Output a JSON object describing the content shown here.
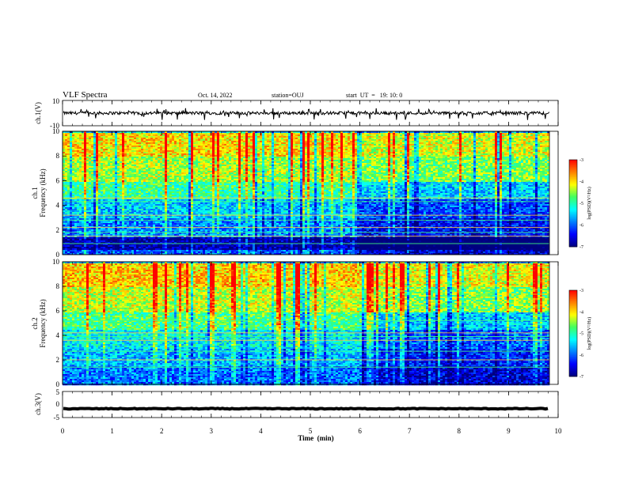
{
  "header": {
    "title": "VLF Spectra",
    "date": "Oct. 14, 2022",
    "station": "station=OUJ",
    "start": "start  UT  =   19: 10: 0"
  },
  "chart_data": {
    "type": "heatmap",
    "x_axis": {
      "label": "Time  (min)",
      "range": [
        0,
        10
      ],
      "ticks": [
        "0",
        "1",
        "2",
        "3",
        "4",
        "5",
        "6",
        "7",
        "8",
        "9",
        "10"
      ],
      "data_end": 9.82
    },
    "panels": [
      {
        "id": "ch1_waveform",
        "type": "line",
        "ylabel": "ch.1(V)",
        "ylim": [
          -10,
          10
        ],
        "ticks": [
          "10",
          "-10"
        ],
        "baseline": 0,
        "noise_amplitude": 1.2,
        "spikes": "frequent negative spikes to about -5"
      },
      {
        "id": "ch1_spectrogram",
        "type": "heatmap",
        "ylabel": [
          "ch.1",
          "Frequency  (kHz)"
        ],
        "ylim": [
          0,
          10
        ],
        "ticks": [
          "0",
          "2",
          "4",
          "6",
          "8",
          "10"
        ],
        "colorbar": {
          "label": "log(PSD)(V²/Hz)",
          "range": [
            -7,
            -3
          ],
          "ticks": [
            "-3",
            "-4",
            "-5",
            "-6",
            "-7"
          ]
        },
        "bands_khz": [
          {
            "from": 0,
            "to": 0.4,
            "level": -6.0
          },
          {
            "from": 0.4,
            "to": 1.5,
            "level": -6.8
          },
          {
            "from": 1.5,
            "to": 3.0,
            "level": -5.8
          },
          {
            "from": 3.0,
            "to": 4.5,
            "level": -5.5
          },
          {
            "from": 4.5,
            "to": 6.0,
            "level": -4.9
          },
          {
            "from": 6.0,
            "to": 8.0,
            "level": -4.4
          },
          {
            "from": 8.0,
            "to": 10,
            "level": -4.0
          }
        ],
        "after_minute_6_level_shift": -0.6,
        "horizontal_lines_khz": [
          0.9,
          1.5,
          1.8,
          2.2,
          2.8,
          3.2,
          4.3,
          4.6
        ]
      },
      {
        "id": "ch2_spectrogram",
        "type": "heatmap",
        "ylabel": [
          "ch.2",
          "Frequency  (kHz)"
        ],
        "ylim": [
          0,
          10
        ],
        "ticks": [
          "0",
          "2",
          "4",
          "6",
          "8",
          "10"
        ],
        "colorbar": {
          "label": "log(PSD)(V²/Hz)",
          "range": [
            -7,
            -3
          ],
          "ticks": [
            "-3",
            "-4",
            "-5",
            "-6",
            "-7"
          ]
        },
        "bands_khz": [
          {
            "from": 0,
            "to": 1.5,
            "level": -5.9
          },
          {
            "from": 1.5,
            "to": 3.0,
            "level": -5.6
          },
          {
            "from": 3.0,
            "to": 4.5,
            "level": -5.3
          },
          {
            "from": 4.5,
            "to": 6.0,
            "level": -4.8
          },
          {
            "from": 6.0,
            "to": 8.0,
            "level": -4.3
          },
          {
            "from": 8.0,
            "to": 10,
            "level": -3.9
          }
        ],
        "after_minute_6_level_shift": -0.7,
        "horizontal_lines_khz": [
          1.4,
          2.0,
          2.7,
          3.6,
          3.9,
          4.2,
          5.2
        ]
      },
      {
        "id": "ch3_waveform",
        "type": "line",
        "ylabel": "ch.3(V)",
        "ylim": [
          -5,
          5
        ],
        "ticks": [
          "5",
          "0",
          "-5"
        ],
        "baseline": -1.6,
        "noise_amplitude": 0.15
      }
    ]
  },
  "colors": {
    "scale": [
      "#00007f",
      "#0000ff",
      "#0080ff",
      "#00ffff",
      "#40ff60",
      "#ffff00",
      "#ff8000",
      "#ff0000",
      "#ffffff"
    ]
  }
}
